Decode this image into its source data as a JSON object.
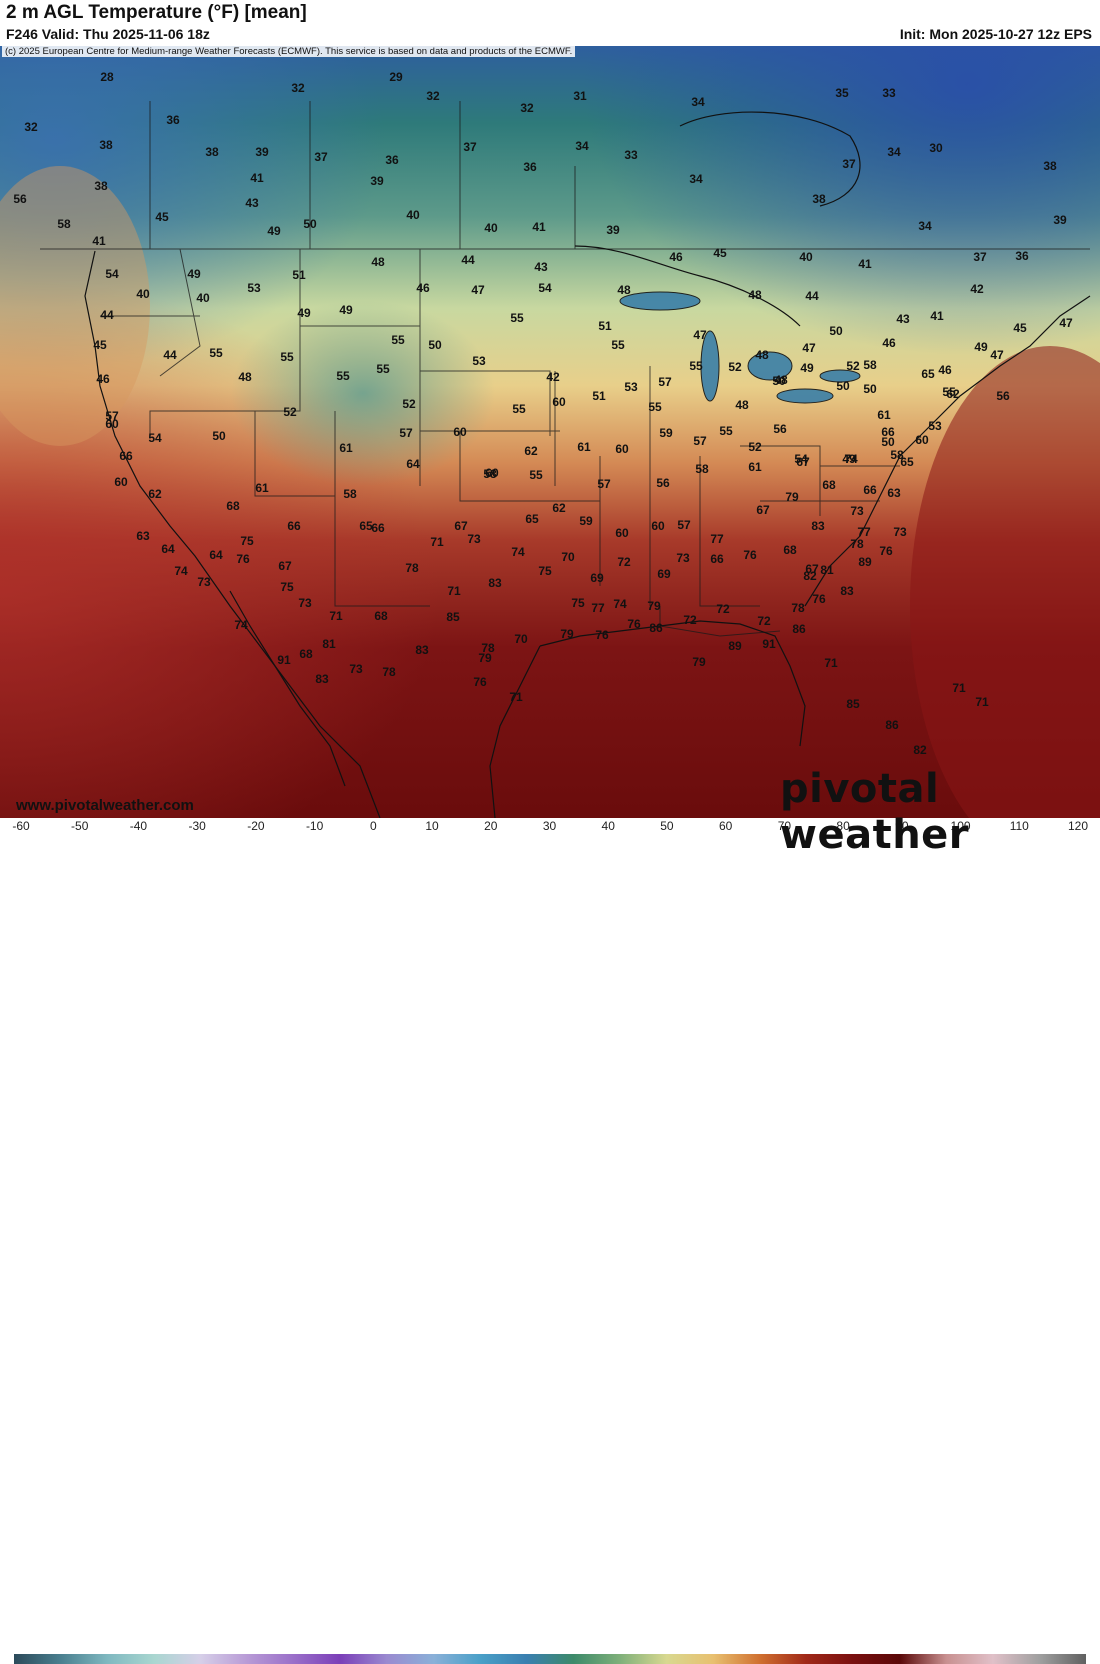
{
  "header": {
    "title": "2 m AGL Temperature (°F) [mean]",
    "valid": "F246 Valid: Thu 2025-11-06 18z",
    "init": "Init: Mon 2025-10-27 12z EPS",
    "copyright": "(c) 2025 European Centre for Medium-range Weather Forecasts (ECMWF). This service is based on data and products of the ECMWF."
  },
  "footer": {
    "website": "www.pivotalweather.com",
    "brand": "pivotal weather"
  },
  "colorbar": {
    "ticks": [
      "-60",
      "-50",
      "-40",
      "-30",
      "-20",
      "-10",
      "0",
      "10",
      "20",
      "30",
      "40",
      "50",
      "60",
      "70",
      "80",
      "90",
      "100",
      "110",
      "120"
    ],
    "colors": [
      "#2c4a5a",
      "#4a7f8f",
      "#7fb8c0",
      "#a9d6d0",
      "#d6cfe8",
      "#b89bd6",
      "#9a6fc9",
      "#7b3fb8",
      "#9a8ad0",
      "#8ab0d8",
      "#4aa0c8",
      "#3a7fb0",
      "#3d8a6a",
      "#7fb07a",
      "#d8d890",
      "#e8c070",
      "#d07030",
      "#a02818",
      "#7a1010",
      "#5a0808",
      "#c89090",
      "#e0c0c8",
      "#a0a0a0",
      "#606060"
    ]
  },
  "map": {
    "temperature_labels": [
      "28",
      "29",
      "32",
      "32",
      "31",
      "32",
      "34",
      "35",
      "33",
      "32",
      "36",
      "38",
      "38",
      "39",
      "37",
      "36",
      "37",
      "36",
      "34",
      "33",
      "34",
      "37",
      "38",
      "34",
      "30",
      "38",
      "41",
      "43",
      "39",
      "56",
      "58",
      "45",
      "49",
      "50",
      "40",
      "40",
      "41",
      "39",
      "38",
      "34",
      "39",
      "41",
      "54",
      "49",
      "51",
      "48",
      "44",
      "43",
      "46",
      "45",
      "40",
      "41",
      "37",
      "36",
      "40",
      "40",
      "53",
      "49",
      "46",
      "47",
      "54",
      "48",
      "48",
      "44",
      "42",
      "43",
      "41",
      "44",
      "45",
      "44",
      "55",
      "55",
      "49",
      "55",
      "50",
      "53",
      "55",
      "51",
      "55",
      "47",
      "48",
      "47",
      "50",
      "46",
      "46",
      "48",
      "55",
      "55",
      "42",
      "51",
      "53",
      "55",
      "52",
      "50",
      "49",
      "50",
      "58",
      "46",
      "45",
      "47",
      "47",
      "49",
      "57",
      "52",
      "52",
      "55",
      "60",
      "57",
      "55",
      "48",
      "48",
      "52",
      "50",
      "60",
      "54",
      "50",
      "57",
      "60",
      "61",
      "64",
      "60",
      "62",
      "61",
      "60",
      "59",
      "57",
      "55",
      "52",
      "56",
      "54",
      "49",
      "50",
      "55",
      "56",
      "53",
      "62",
      "61",
      "65",
      "66",
      "60",
      "62",
      "61",
      "58",
      "58",
      "55",
      "57",
      "56",
      "58",
      "61",
      "67",
      "74",
      "66",
      "58",
      "65",
      "60",
      "68",
      "66",
      "66",
      "67",
      "65",
      "62",
      "59",
      "60",
      "60",
      "57",
      "77",
      "67",
      "83",
      "79",
      "68",
      "73",
      "66",
      "63",
      "63",
      "64",
      "64",
      "67",
      "65",
      "71",
      "73",
      "74",
      "70",
      "69",
      "72",
      "69",
      "73",
      "66",
      "76",
      "68",
      "67",
      "81",
      "78",
      "73",
      "73",
      "75",
      "76",
      "75",
      "73",
      "71",
      "68",
      "78",
      "71",
      "83",
      "75",
      "75",
      "77",
      "74",
      "79",
      "72",
      "72",
      "72",
      "86",
      "78",
      "82",
      "76",
      "83",
      "89",
      "76",
      "77",
      "74",
      "74",
      "91",
      "81",
      "83",
      "85",
      "78",
      "70",
      "79",
      "76",
      "76",
      "86",
      "79",
      "89",
      "91",
      "71",
      "85",
      "86",
      "82",
      "71",
      "71",
      "68",
      "83",
      "73",
      "78",
      "76",
      "79",
      "71"
    ]
  }
}
